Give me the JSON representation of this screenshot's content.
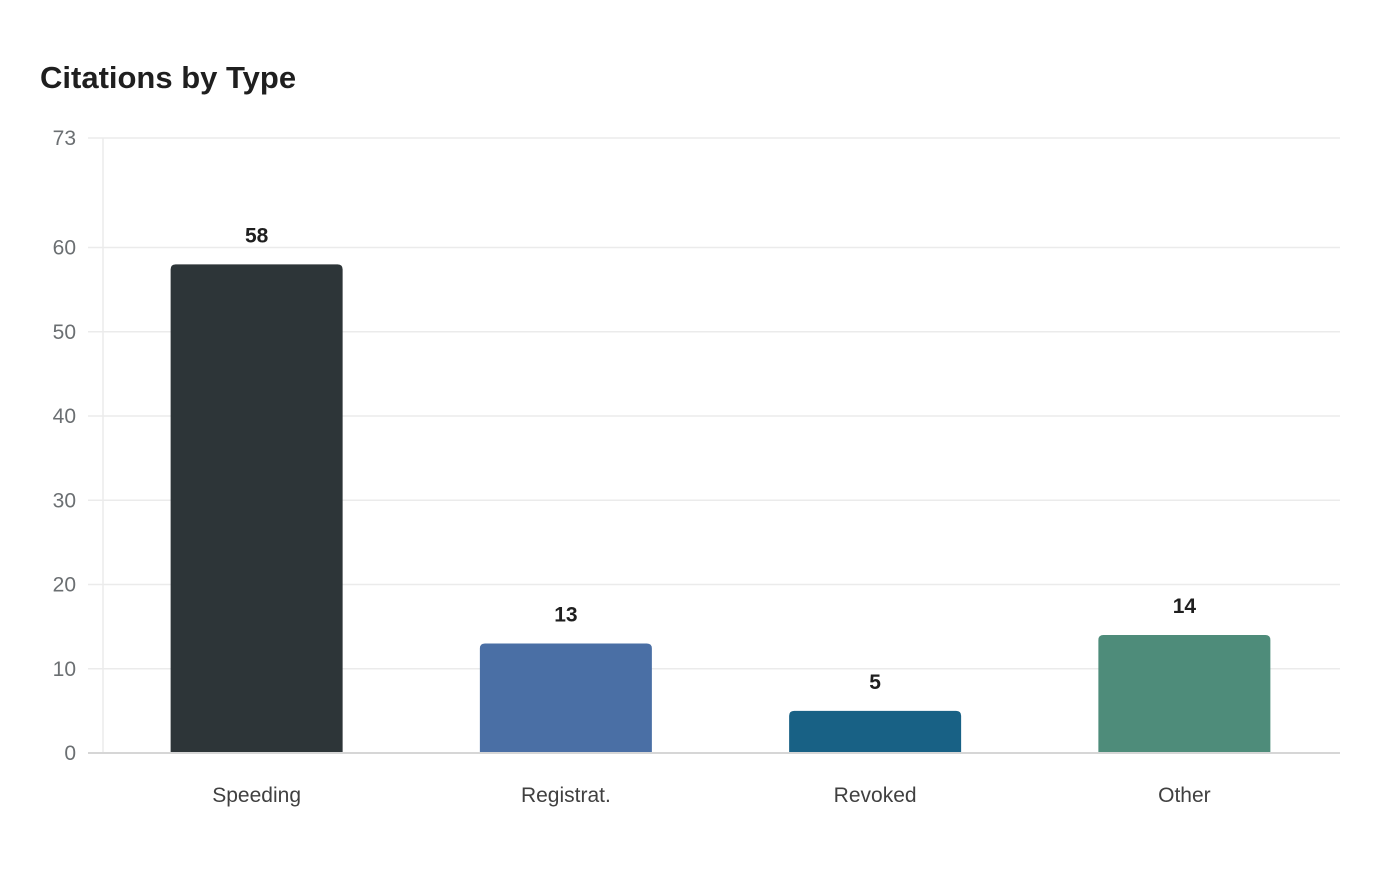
{
  "title": "Citations by Type",
  "colors": {
    "grid": "#ebebeb",
    "axis": "#d6d6d6",
    "bars": [
      "#2d3538",
      "#4a6fa5",
      "#186185",
      "#4e8c7a"
    ]
  },
  "chart_data": {
    "type": "bar",
    "title": "Citations by Type",
    "xlabel": "",
    "ylabel": "",
    "categories": [
      "Speeding",
      "Registrat.",
      "Revoked",
      "Other"
    ],
    "values": [
      58,
      13,
      5,
      14
    ],
    "ylim": [
      0,
      73
    ],
    "yticks": [
      0,
      10,
      20,
      30,
      40,
      50,
      60,
      73
    ],
    "grid": true,
    "legend": "none",
    "data_labels": true
  }
}
